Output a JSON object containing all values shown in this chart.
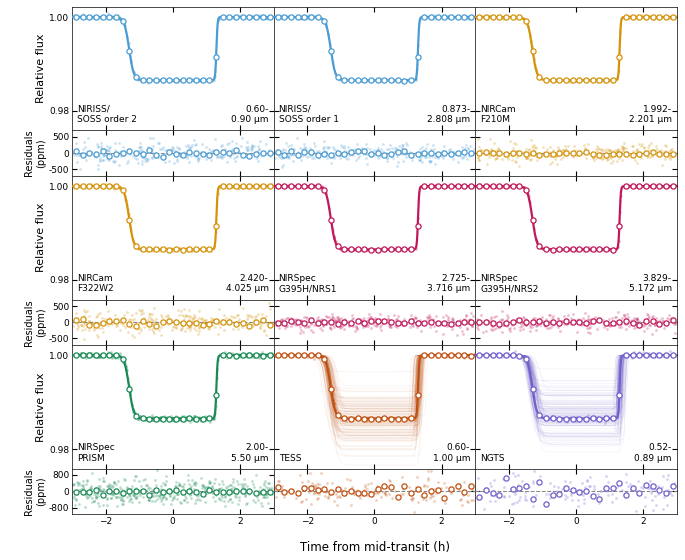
{
  "panels": [
    {
      "instrument": "NIRISS/\nSOSS order 2",
      "wavelength": "0.60-\n0.90 μm",
      "color": "#4B9CD3",
      "depth": 0.0135,
      "t_ingress": -1.3,
      "t_egress": 1.3,
      "t_flat_half": 0.78,
      "sharpness": 15,
      "scatter_ppm": 200,
      "resid_scatter_ppm": 180,
      "circ_resid_ppm": 50,
      "resid_ylim": [
        -700,
        700
      ],
      "resid_yticks": [
        500,
        0,
        -500
      ],
      "has_spaghetti": false,
      "n_bg": 220,
      "n_circ": 30
    },
    {
      "instrument": "NIRISS/\nSOSS order 1",
      "wavelength": "0.873-\n2.808 μm",
      "color": "#4B9CD3",
      "depth": 0.0135,
      "t_ingress": -1.3,
      "t_egress": 1.3,
      "t_flat_half": 0.78,
      "sharpness": 15,
      "scatter_ppm": 160,
      "resid_scatter_ppm": 150,
      "circ_resid_ppm": 40,
      "resid_ylim": [
        -700,
        700
      ],
      "resid_yticks": [
        500,
        0,
        -500
      ],
      "has_spaghetti": false,
      "n_bg": 220,
      "n_circ": 30
    },
    {
      "instrument": "NIRCam\nF210M",
      "wavelength": "1.992-\n2.201 μm",
      "color": "#D4930A",
      "depth": 0.0135,
      "t_ingress": -1.3,
      "t_egress": 1.3,
      "t_flat_half": 0.78,
      "sharpness": 15,
      "scatter_ppm": 160,
      "resid_scatter_ppm": 150,
      "circ_resid_ppm": 40,
      "resid_ylim": [
        -700,
        700
      ],
      "resid_yticks": [
        500,
        0,
        -500
      ],
      "has_spaghetti": false,
      "n_bg": 200,
      "n_circ": 30
    },
    {
      "instrument": "NIRCam\nF322W2",
      "wavelength": "2.420-\n4.025 μm",
      "color": "#D4930A",
      "depth": 0.0135,
      "t_ingress": -1.3,
      "t_egress": 1.3,
      "t_flat_half": 0.78,
      "sharpness": 15,
      "scatter_ppm": 200,
      "resid_scatter_ppm": 180,
      "circ_resid_ppm": 55,
      "resid_ylim": [
        -700,
        700
      ],
      "resid_yticks": [
        500,
        0,
        -500
      ],
      "has_spaghetti": false,
      "n_bg": 220,
      "n_circ": 30
    },
    {
      "instrument": "NIRSpec\nG395H/NRS1",
      "wavelength": "2.725-\n3.716 μm",
      "color": "#C0185A",
      "depth": 0.0135,
      "t_ingress": -1.3,
      "t_egress": 1.3,
      "t_flat_half": 0.78,
      "sharpness": 15,
      "scatter_ppm": 150,
      "resid_scatter_ppm": 130,
      "circ_resid_ppm": 35,
      "resid_ylim": [
        -700,
        700
      ],
      "resid_yticks": [
        500,
        0,
        -500
      ],
      "has_spaghetti": false,
      "n_bg": 220,
      "n_circ": 30
    },
    {
      "instrument": "NIRSpec\nG395H/NRS2",
      "wavelength": "3.829-\n5.172 μm",
      "color": "#C0185A",
      "depth": 0.0135,
      "t_ingress": -1.3,
      "t_egress": 1.3,
      "t_flat_half": 0.78,
      "sharpness": 15,
      "scatter_ppm": 150,
      "resid_scatter_ppm": 130,
      "circ_resid_ppm": 35,
      "resid_ylim": [
        -700,
        700
      ],
      "resid_yticks": [
        500,
        0,
        -500
      ],
      "has_spaghetti": false,
      "n_bg": 220,
      "n_circ": 30
    },
    {
      "instrument": "NIRSpec\nPRISM",
      "wavelength": "2.00-\n5.50 μm",
      "color": "#1A8A55",
      "depth": 0.0135,
      "t_ingress": -1.3,
      "t_egress": 1.3,
      "t_flat_half": 0.78,
      "sharpness": 15,
      "scatter_ppm": 280,
      "resid_scatter_ppm": 300,
      "circ_resid_ppm": 60,
      "resid_ylim": [
        -1100,
        1100
      ],
      "resid_yticks": [
        800,
        0,
        -800
      ],
      "has_spaghetti": false,
      "n_bg": 380,
      "n_circ": 30
    },
    {
      "instrument": "TESS",
      "wavelength": "0.60-\n1.00 μm",
      "color": "#C05010",
      "depth": 0.0135,
      "t_ingress": -1.3,
      "t_egress": 1.3,
      "t_flat_half": 0.78,
      "sharpness": 15,
      "scatter_ppm": 250,
      "resid_scatter_ppm": 350,
      "circ_resid_ppm": 200,
      "resid_ylim": [
        -1100,
        1100
      ],
      "resid_yticks": [
        0
      ],
      "has_spaghetti": true,
      "n_bg": 100,
      "n_circ": 30
    },
    {
      "instrument": "NGTS",
      "wavelength": "0.52-\n0.89 μm",
      "color": "#7060CC",
      "depth": 0.0135,
      "t_ingress": -1.3,
      "t_egress": 1.3,
      "t_flat_half": 0.78,
      "sharpness": 15,
      "scatter_ppm": 300,
      "resid_scatter_ppm": 400,
      "circ_resid_ppm": 250,
      "resid_ylim": [
        -1100,
        1100
      ],
      "resid_yticks": [
        0
      ],
      "has_spaghetti": true,
      "n_bg": 80,
      "n_circ": 30
    }
  ],
  "t_extent": 3.0,
  "flux_ylim": [
    0.9758,
    1.0022
  ],
  "flux_yticks": [
    0.98,
    1.0
  ],
  "xlabel": "Time from mid-transit (h)",
  "ylabel_flux": "Relative flux",
  "ylabel_resid": "Residuals\n(ppm)"
}
